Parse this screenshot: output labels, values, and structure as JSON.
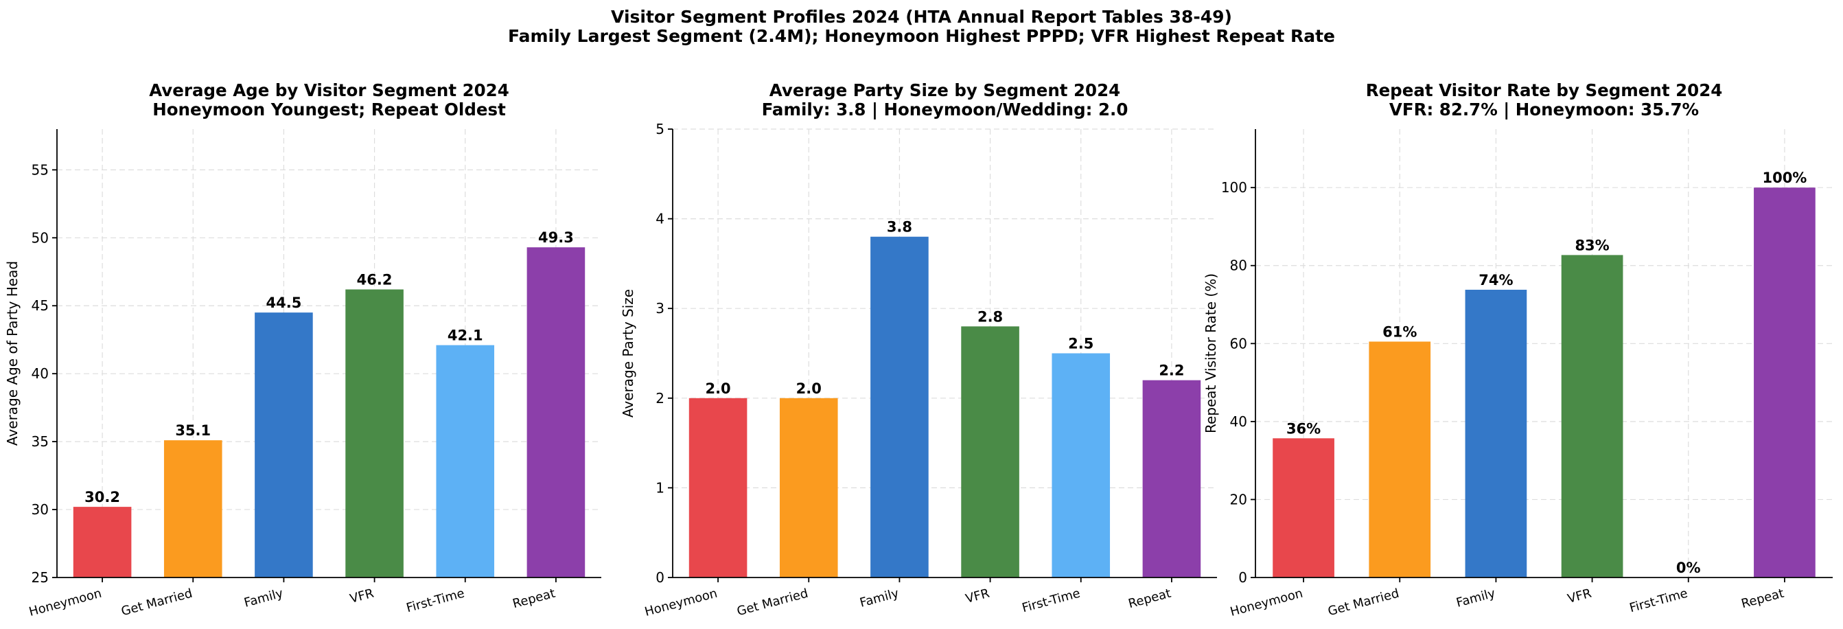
{
  "figure": {
    "title_line1": "Visitor Segment Profiles 2024 (HTA Annual Report Tables 38-49)",
    "title_line2": "Family Largest Segment (2.4M); Honeymoon Highest PPPD; VFR Highest Repeat Rate"
  },
  "colors": [
    "#e8474c",
    "#fb9b1f",
    "#3478c8",
    "#4a8b47",
    "#5db1f5",
    "#8c3faa"
  ],
  "chart_data": [
    {
      "type": "bar",
      "title_line1": "Average Age by Visitor Segment 2024",
      "title_line2": "Honeymoon Youngest; Repeat Oldest",
      "xlabel": "",
      "ylabel": "Average Age of Party Head",
      "categories": [
        "Honeymoon",
        "Get Married",
        "Family",
        "VFR",
        "First-Time",
        "Repeat"
      ],
      "values": [
        30.2,
        35.1,
        44.5,
        46.2,
        42.1,
        49.3
      ],
      "value_labels": [
        "30.2",
        "35.1",
        "44.5",
        "46.2",
        "42.1",
        "49.3"
      ],
      "ylim": [
        25,
        58
      ],
      "yticks": [
        25,
        30,
        35,
        40,
        45,
        50,
        55
      ],
      "grid": true
    },
    {
      "type": "bar",
      "title_line1": "Average Party Size by Segment 2024",
      "title_line2": "Family: 3.8 | Honeymoon/Wedding: 2.0",
      "xlabel": "",
      "ylabel": "Average Party Size",
      "categories": [
        "Honeymoon",
        "Get Married",
        "Family",
        "VFR",
        "First-Time",
        "Repeat"
      ],
      "values": [
        2.0,
        2.0,
        3.8,
        2.8,
        2.5,
        2.2
      ],
      "value_labels": [
        "2.0",
        "2.0",
        "3.8",
        "2.8",
        "2.5",
        "2.2"
      ],
      "ylim": [
        0,
        5
      ],
      "yticks": [
        0,
        1,
        2,
        3,
        4,
        5
      ],
      "grid": true
    },
    {
      "type": "bar",
      "title_line1": "Repeat Visitor Rate by Segment 2024",
      "title_line2": "VFR: 82.7% | Honeymoon: 35.7%",
      "xlabel": "",
      "ylabel": "Repeat Visitor Rate (%)",
      "categories": [
        "Honeymoon",
        "Get Married",
        "Family",
        "VFR",
        "First-Time",
        "Repeat"
      ],
      "values": [
        35.7,
        60.5,
        73.8,
        82.7,
        0,
        100
      ],
      "value_labels": [
        "36%",
        "61%",
        "74%",
        "83%",
        "0%",
        "100%"
      ],
      "ylim": [
        0,
        115
      ],
      "yticks": [
        0,
        20,
        40,
        60,
        80,
        100
      ],
      "grid": true
    }
  ]
}
